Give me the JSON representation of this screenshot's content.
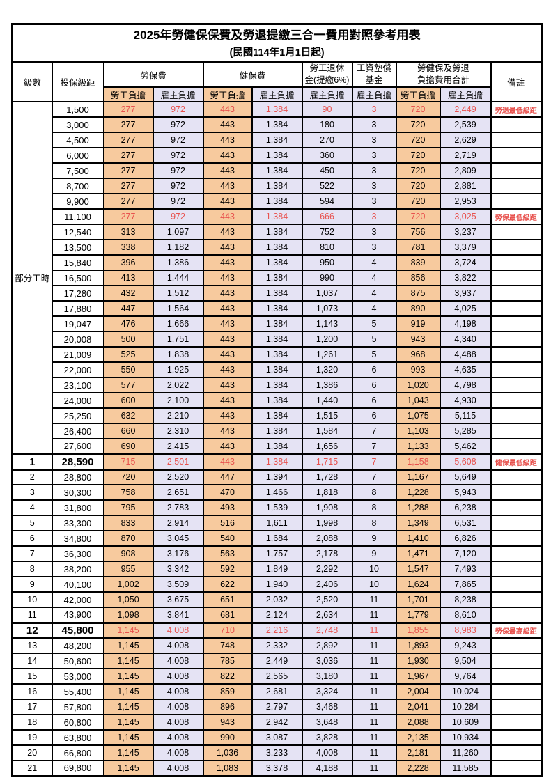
{
  "title": {
    "main": "2025年勞健保保費及勞退提繳三合一費用對照參考用表",
    "sub": "(民國114年1月1日起)"
  },
  "headers": {
    "level": "級數",
    "salary": "投保級距",
    "labor": "勞保費",
    "health": "健保費",
    "pension_l1": "勞工退休",
    "pension_l2": "金(提繳6%)",
    "fund_l1": "工資墊償",
    "fund_l2": "基金",
    "total_l1": "勞健保及勞退",
    "total_l2": "負擔費用合計",
    "note": "備註",
    "employee": "勞工負擔",
    "employer": "雇主負擔"
  },
  "colors": {
    "employee_bg": "#F7CA9E",
    "employer_bg": "#E5E3F4",
    "highlight_red": "#E8524E",
    "border": "#000000"
  },
  "part_time": {
    "label": "部分工時",
    "rowspan": 23
  },
  "rows": [
    {
      "level": "",
      "salary": "1,500",
      "labor_emp": "277",
      "labor_er": "972",
      "health_emp": "443",
      "health_er": "1,384",
      "pension_er": "90",
      "fund_er": "3",
      "total_emp": "720",
      "total_er": "2,449",
      "note": "勞退最低級距",
      "red": true,
      "special": false
    },
    {
      "level": "",
      "salary": "3,000",
      "labor_emp": "277",
      "labor_er": "972",
      "health_emp": "443",
      "health_er": "1,384",
      "pension_er": "180",
      "fund_er": "3",
      "total_emp": "720",
      "total_er": "2,539",
      "note": "",
      "red": false,
      "special": false
    },
    {
      "level": "",
      "salary": "4,500",
      "labor_emp": "277",
      "labor_er": "972",
      "health_emp": "443",
      "health_er": "1,384",
      "pension_er": "270",
      "fund_er": "3",
      "total_emp": "720",
      "total_er": "2,629",
      "note": "",
      "red": false,
      "special": false
    },
    {
      "level": "",
      "salary": "6,000",
      "labor_emp": "277",
      "labor_er": "972",
      "health_emp": "443",
      "health_er": "1,384",
      "pension_er": "360",
      "fund_er": "3",
      "total_emp": "720",
      "total_er": "2,719",
      "note": "",
      "red": false,
      "special": false
    },
    {
      "level": "",
      "salary": "7,500",
      "labor_emp": "277",
      "labor_er": "972",
      "health_emp": "443",
      "health_er": "1,384",
      "pension_er": "450",
      "fund_er": "3",
      "total_emp": "720",
      "total_er": "2,809",
      "note": "",
      "red": false,
      "special": false
    },
    {
      "level": "",
      "salary": "8,700",
      "labor_emp": "277",
      "labor_er": "972",
      "health_emp": "443",
      "health_er": "1,384",
      "pension_er": "522",
      "fund_er": "3",
      "total_emp": "720",
      "total_er": "2,881",
      "note": "",
      "red": false,
      "special": false
    },
    {
      "level": "",
      "salary": "9,900",
      "labor_emp": "277",
      "labor_er": "972",
      "health_emp": "443",
      "health_er": "1,384",
      "pension_er": "594",
      "fund_er": "3",
      "total_emp": "720",
      "total_er": "2,953",
      "note": "",
      "red": false,
      "special": false
    },
    {
      "level": "",
      "salary": "11,100",
      "labor_emp": "277",
      "labor_er": "972",
      "health_emp": "443",
      "health_er": "1,384",
      "pension_er": "666",
      "fund_er": "3",
      "total_emp": "720",
      "total_er": "3,025",
      "note": "勞保最低級距",
      "red": true,
      "special": false
    },
    {
      "level": "",
      "salary": "12,540",
      "labor_emp": "313",
      "labor_er": "1,097",
      "health_emp": "443",
      "health_er": "1,384",
      "pension_er": "752",
      "fund_er": "3",
      "total_emp": "756",
      "total_er": "3,237",
      "note": "",
      "red": false,
      "special": false
    },
    {
      "level": "",
      "salary": "13,500",
      "labor_emp": "338",
      "labor_er": "1,182",
      "health_emp": "443",
      "health_er": "1,384",
      "pension_er": "810",
      "fund_er": "3",
      "total_emp": "781",
      "total_er": "3,379",
      "note": "",
      "red": false,
      "special": false
    },
    {
      "level": "",
      "salary": "15,840",
      "labor_emp": "396",
      "labor_er": "1,386",
      "health_emp": "443",
      "health_er": "1,384",
      "pension_er": "950",
      "fund_er": "4",
      "total_emp": "839",
      "total_er": "3,724",
      "note": "",
      "red": false,
      "special": false
    },
    {
      "level": "",
      "salary": "16,500",
      "labor_emp": "413",
      "labor_er": "1,444",
      "health_emp": "443",
      "health_er": "1,384",
      "pension_er": "990",
      "fund_er": "4",
      "total_emp": "856",
      "total_er": "3,822",
      "note": "",
      "red": false,
      "special": false
    },
    {
      "level": "",
      "salary": "17,280",
      "labor_emp": "432",
      "labor_er": "1,512",
      "health_emp": "443",
      "health_er": "1,384",
      "pension_er": "1,037",
      "fund_er": "4",
      "total_emp": "875",
      "total_er": "3,937",
      "note": "",
      "red": false,
      "special": false
    },
    {
      "level": "",
      "salary": "17,880",
      "labor_emp": "447",
      "labor_er": "1,564",
      "health_emp": "443",
      "health_er": "1,384",
      "pension_er": "1,073",
      "fund_er": "4",
      "total_emp": "890",
      "total_er": "4,025",
      "note": "",
      "red": false,
      "special": false
    },
    {
      "level": "",
      "salary": "19,047",
      "labor_emp": "476",
      "labor_er": "1,666",
      "health_emp": "443",
      "health_er": "1,384",
      "pension_er": "1,143",
      "fund_er": "5",
      "total_emp": "919",
      "total_er": "4,198",
      "note": "",
      "red": false,
      "special": false
    },
    {
      "level": "",
      "salary": "20,008",
      "labor_emp": "500",
      "labor_er": "1,751",
      "health_emp": "443",
      "health_er": "1,384",
      "pension_er": "1,200",
      "fund_er": "5",
      "total_emp": "943",
      "total_er": "4,340",
      "note": "",
      "red": false,
      "special": false
    },
    {
      "level": "",
      "salary": "21,009",
      "labor_emp": "525",
      "labor_er": "1,838",
      "health_emp": "443",
      "health_er": "1,384",
      "pension_er": "1,261",
      "fund_er": "5",
      "total_emp": "968",
      "total_er": "4,488",
      "note": "",
      "red": false,
      "special": false
    },
    {
      "level": "",
      "salary": "22,000",
      "labor_emp": "550",
      "labor_er": "1,925",
      "health_emp": "443",
      "health_er": "1,384",
      "pension_er": "1,320",
      "fund_er": "6",
      "total_emp": "993",
      "total_er": "4,635",
      "note": "",
      "red": false,
      "special": false
    },
    {
      "level": "",
      "salary": "23,100",
      "labor_emp": "577",
      "labor_er": "2,022",
      "health_emp": "443",
      "health_er": "1,384",
      "pension_er": "1,386",
      "fund_er": "6",
      "total_emp": "1,020",
      "total_er": "4,798",
      "note": "",
      "red": false,
      "special": false
    },
    {
      "level": "",
      "salary": "24,000",
      "labor_emp": "600",
      "labor_er": "2,100",
      "health_emp": "443",
      "health_er": "1,384",
      "pension_er": "1,440",
      "fund_er": "6",
      "total_emp": "1,043",
      "total_er": "4,930",
      "note": "",
      "red": false,
      "special": false
    },
    {
      "level": "",
      "salary": "25,250",
      "labor_emp": "632",
      "labor_er": "2,210",
      "health_emp": "443",
      "health_er": "1,384",
      "pension_er": "1,515",
      "fund_er": "6",
      "total_emp": "1,075",
      "total_er": "5,115",
      "note": "",
      "red": false,
      "special": false
    },
    {
      "level": "",
      "salary": "26,400",
      "labor_emp": "660",
      "labor_er": "2,310",
      "health_emp": "443",
      "health_er": "1,384",
      "pension_er": "1,584",
      "fund_er": "7",
      "total_emp": "1,103",
      "total_er": "5,285",
      "note": "",
      "red": false,
      "special": false
    },
    {
      "level": "",
      "salary": "27,600",
      "labor_emp": "690",
      "labor_er": "2,415",
      "health_emp": "443",
      "health_er": "1,384",
      "pension_er": "1,656",
      "fund_er": "7",
      "total_emp": "1,133",
      "total_er": "5,462",
      "note": "",
      "red": false,
      "special": false
    },
    {
      "level": "1",
      "salary": "28,590",
      "labor_emp": "715",
      "labor_er": "2,501",
      "health_emp": "443",
      "health_er": "1,384",
      "pension_er": "1,715",
      "fund_er": "7",
      "total_emp": "1,158",
      "total_er": "5,608",
      "note": "健保最低級距",
      "red": true,
      "special": true
    },
    {
      "level": "2",
      "salary": "28,800",
      "labor_emp": "720",
      "labor_er": "2,520",
      "health_emp": "447",
      "health_er": "1,394",
      "pension_er": "1,728",
      "fund_er": "7",
      "total_emp": "1,167",
      "total_er": "5,649",
      "note": "",
      "red": false,
      "special": false
    },
    {
      "level": "3",
      "salary": "30,300",
      "labor_emp": "758",
      "labor_er": "2,651",
      "health_emp": "470",
      "health_er": "1,466",
      "pension_er": "1,818",
      "fund_er": "8",
      "total_emp": "1,228",
      "total_er": "5,943",
      "note": "",
      "red": false,
      "special": false
    },
    {
      "level": "4",
      "salary": "31,800",
      "labor_emp": "795",
      "labor_er": "2,783",
      "health_emp": "493",
      "health_er": "1,539",
      "pension_er": "1,908",
      "fund_er": "8",
      "total_emp": "1,288",
      "total_er": "6,238",
      "note": "",
      "red": false,
      "special": false
    },
    {
      "level": "5",
      "salary": "33,300",
      "labor_emp": "833",
      "labor_er": "2,914",
      "health_emp": "516",
      "health_er": "1,611",
      "pension_er": "1,998",
      "fund_er": "8",
      "total_emp": "1,349",
      "total_er": "6,531",
      "note": "",
      "red": false,
      "special": false
    },
    {
      "level": "6",
      "salary": "34,800",
      "labor_emp": "870",
      "labor_er": "3,045",
      "health_emp": "540",
      "health_er": "1,684",
      "pension_er": "2,088",
      "fund_er": "9",
      "total_emp": "1,410",
      "total_er": "6,826",
      "note": "",
      "red": false,
      "special": false
    },
    {
      "level": "7",
      "salary": "36,300",
      "labor_emp": "908",
      "labor_er": "3,176",
      "health_emp": "563",
      "health_er": "1,757",
      "pension_er": "2,178",
      "fund_er": "9",
      "total_emp": "1,471",
      "total_er": "7,120",
      "note": "",
      "red": false,
      "special": false
    },
    {
      "level": "8",
      "salary": "38,200",
      "labor_emp": "955",
      "labor_er": "3,342",
      "health_emp": "592",
      "health_er": "1,849",
      "pension_er": "2,292",
      "fund_er": "10",
      "total_emp": "1,547",
      "total_er": "7,493",
      "note": "",
      "red": false,
      "special": false
    },
    {
      "level": "9",
      "salary": "40,100",
      "labor_emp": "1,002",
      "labor_er": "3,509",
      "health_emp": "622",
      "health_er": "1,940",
      "pension_er": "2,406",
      "fund_er": "10",
      "total_emp": "1,624",
      "total_er": "7,865",
      "note": "",
      "red": false,
      "special": false
    },
    {
      "level": "10",
      "salary": "42,000",
      "labor_emp": "1,050",
      "labor_er": "3,675",
      "health_emp": "651",
      "health_er": "2,032",
      "pension_er": "2,520",
      "fund_er": "11",
      "total_emp": "1,701",
      "total_er": "8,238",
      "note": "",
      "red": false,
      "special": false
    },
    {
      "level": "11",
      "salary": "43,900",
      "labor_emp": "1,098",
      "labor_er": "3,841",
      "health_emp": "681",
      "health_er": "2,124",
      "pension_er": "2,634",
      "fund_er": "11",
      "total_emp": "1,779",
      "total_er": "8,610",
      "note": "",
      "red": false,
      "special": false
    },
    {
      "level": "12",
      "salary": "45,800",
      "labor_emp": "1,145",
      "labor_er": "4,008",
      "health_emp": "710",
      "health_er": "2,216",
      "pension_er": "2,748",
      "fund_er": "11",
      "total_emp": "1,855",
      "total_er": "8,983",
      "note": "勞保最高級距",
      "red": true,
      "special": true
    },
    {
      "level": "13",
      "salary": "48,200",
      "labor_emp": "1,145",
      "labor_er": "4,008",
      "health_emp": "748",
      "health_er": "2,332",
      "pension_er": "2,892",
      "fund_er": "11",
      "total_emp": "1,893",
      "total_er": "9,243",
      "note": "",
      "red": false,
      "special": false
    },
    {
      "level": "14",
      "salary": "50,600",
      "labor_emp": "1,145",
      "labor_er": "4,008",
      "health_emp": "785",
      "health_er": "2,449",
      "pension_er": "3,036",
      "fund_er": "11",
      "total_emp": "1,930",
      "total_er": "9,504",
      "note": "",
      "red": false,
      "special": false
    },
    {
      "level": "15",
      "salary": "53,000",
      "labor_emp": "1,145",
      "labor_er": "4,008",
      "health_emp": "822",
      "health_er": "2,565",
      "pension_er": "3,180",
      "fund_er": "11",
      "total_emp": "1,967",
      "total_er": "9,764",
      "note": "",
      "red": false,
      "special": false
    },
    {
      "level": "16",
      "salary": "55,400",
      "labor_emp": "1,145",
      "labor_er": "4,008",
      "health_emp": "859",
      "health_er": "2,681",
      "pension_er": "3,324",
      "fund_er": "11",
      "total_emp": "2,004",
      "total_er": "10,024",
      "note": "",
      "red": false,
      "special": false
    },
    {
      "level": "17",
      "salary": "57,800",
      "labor_emp": "1,145",
      "labor_er": "4,008",
      "health_emp": "896",
      "health_er": "2,797",
      "pension_er": "3,468",
      "fund_er": "11",
      "total_emp": "2,041",
      "total_er": "10,284",
      "note": "",
      "red": false,
      "special": false
    },
    {
      "level": "18",
      "salary": "60,800",
      "labor_emp": "1,145",
      "labor_er": "4,008",
      "health_emp": "943",
      "health_er": "2,942",
      "pension_er": "3,648",
      "fund_er": "11",
      "total_emp": "2,088",
      "total_er": "10,609",
      "note": "",
      "red": false,
      "special": false
    },
    {
      "level": "19",
      "salary": "63,800",
      "labor_emp": "1,145",
      "labor_er": "4,008",
      "health_emp": "990",
      "health_er": "3,087",
      "pension_er": "3,828",
      "fund_er": "11",
      "total_emp": "2,135",
      "total_er": "10,934",
      "note": "",
      "red": false,
      "special": false
    },
    {
      "level": "20",
      "salary": "66,800",
      "labor_emp": "1,145",
      "labor_er": "4,008",
      "health_emp": "1,036",
      "health_er": "3,233",
      "pension_er": "4,008",
      "fund_er": "11",
      "total_emp": "2,181",
      "total_er": "11,260",
      "note": "",
      "red": false,
      "special": false
    },
    {
      "level": "21",
      "salary": "69,800",
      "labor_emp": "1,145",
      "labor_er": "4,008",
      "health_emp": "1,083",
      "health_er": "3,378",
      "pension_er": "4,188",
      "fund_er": "11",
      "total_emp": "2,228",
      "total_er": "11,585",
      "note": "",
      "red": false,
      "special": false
    }
  ]
}
